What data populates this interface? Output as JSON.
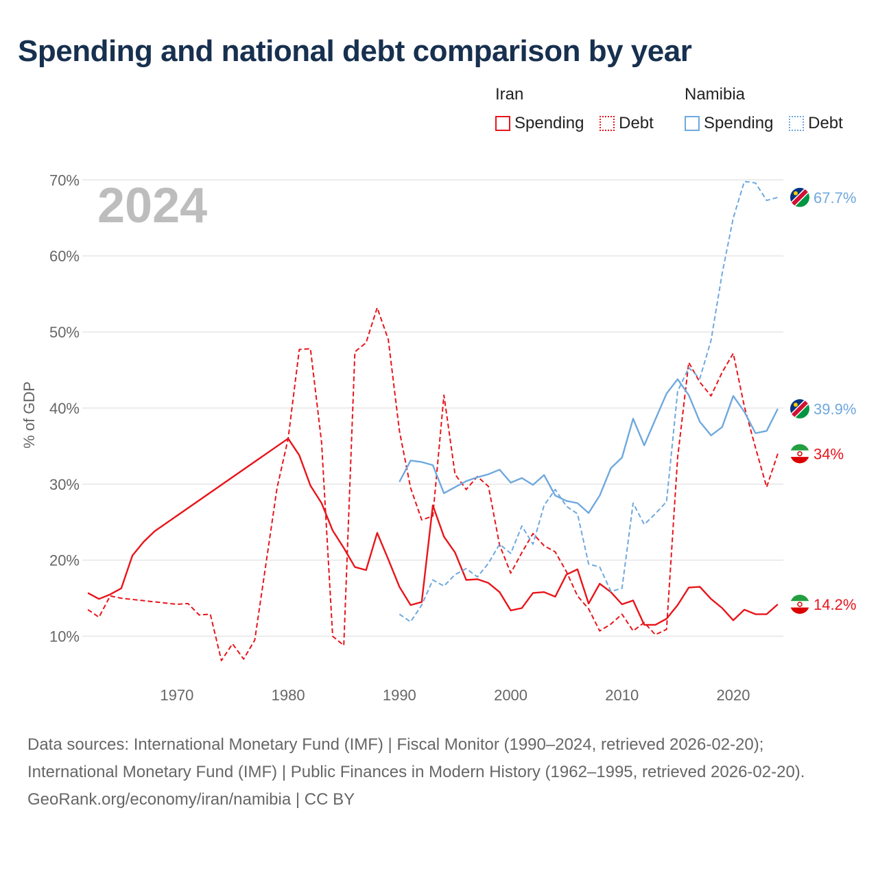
{
  "title": "Spending and national debt comparison by year",
  "legend": {
    "groups": [
      {
        "country": "Iran",
        "color": "#e8141a",
        "spending_label": "Spending",
        "debt_label": "Debt"
      },
      {
        "country": "Namibia",
        "color": "#6ea8de",
        "spending_label": "Spending",
        "debt_label": "Debt"
      }
    ]
  },
  "footer": {
    "sources": "Data sources: International Monetary Fund (IMF) | Fiscal Monitor (1990–2024, retrieved 2026-02-20); International Monetary Fund (IMF) | Public Finances in Modern History (1962–1995, retrieved 2026-02-20).",
    "credit": "GeoRank.org/economy/iran/namibia | CC BY"
  },
  "chart_data": {
    "type": "line",
    "year_label": "2024",
    "ylabel": "% of GDP",
    "xlim": [
      1961.5,
      2024.5
    ],
    "ylim": [
      5,
      73
    ],
    "x_ticks": [
      1970,
      1980,
      1990,
      2000,
      2010,
      2020
    ],
    "y_ticks": [
      {
        "value": 10,
        "label": "10%"
      },
      {
        "value": 20,
        "label": "20%"
      },
      {
        "value": 30,
        "label": "30%"
      },
      {
        "value": 40,
        "label": "40%"
      },
      {
        "value": 50,
        "label": "50%"
      },
      {
        "value": 60,
        "label": "60%"
      },
      {
        "value": 70,
        "label": "70%"
      }
    ],
    "series": [
      {
        "name": "Iran Spending",
        "country": "Iran",
        "metric": "Spending",
        "color": "#e8141a",
        "dashed": false,
        "end_label": "14.2%",
        "points": [
          [
            1962,
            15.7
          ],
          [
            1963,
            14.9
          ],
          [
            1964,
            15.5
          ],
          [
            1965,
            16.3
          ],
          [
            1966,
            20.6
          ],
          [
            1967,
            22.4
          ],
          [
            1968,
            23.8
          ],
          [
            1980,
            36.0
          ],
          [
            1981,
            33.8
          ],
          [
            1982,
            29.8
          ],
          [
            1983,
            27.5
          ],
          [
            1984,
            23.9
          ],
          [
            1985,
            21.6
          ],
          [
            1986,
            19.1
          ],
          [
            1987,
            18.7
          ],
          [
            1988,
            23.6
          ],
          [
            1989,
            20.1
          ],
          [
            1990,
            16.5
          ],
          [
            1991,
            14.1
          ],
          [
            1992,
            14.5
          ],
          [
            1993,
            27.2
          ],
          [
            1994,
            23.1
          ],
          [
            1995,
            21.0
          ],
          [
            1996,
            17.4
          ],
          [
            1997,
            17.5
          ],
          [
            1998,
            17.0
          ],
          [
            1999,
            15.8
          ],
          [
            2000,
            13.4
          ],
          [
            2001,
            13.7
          ],
          [
            2002,
            15.7
          ],
          [
            2003,
            15.8
          ],
          [
            2004,
            15.2
          ],
          [
            2005,
            18.1
          ],
          [
            2006,
            18.8
          ],
          [
            2007,
            14.3
          ],
          [
            2008,
            16.9
          ],
          [
            2009,
            15.8
          ],
          [
            2010,
            14.2
          ],
          [
            2011,
            14.7
          ],
          [
            2012,
            11.5
          ],
          [
            2013,
            11.5
          ],
          [
            2014,
            12.3
          ],
          [
            2015,
            14.1
          ],
          [
            2016,
            16.4
          ],
          [
            2017,
            16.5
          ],
          [
            2018,
            14.9
          ],
          [
            2019,
            13.7
          ],
          [
            2020,
            12.1
          ],
          [
            2021,
            13.5
          ],
          [
            2022,
            12.9
          ],
          [
            2023,
            12.9
          ],
          [
            2024,
            14.2
          ]
        ]
      },
      {
        "name": "Iran Debt",
        "country": "Iran",
        "metric": "Debt",
        "color": "#e8141a",
        "dashed": true,
        "end_label": "34%",
        "points": [
          [
            1962,
            13.5
          ],
          [
            1963,
            12.5
          ],
          [
            1964,
            15.3
          ],
          [
            1965,
            15.0
          ],
          [
            1970,
            14.2
          ],
          [
            1971,
            14.3
          ],
          [
            1972,
            12.8
          ],
          [
            1973,
            12.9
          ],
          [
            1974,
            6.8
          ],
          [
            1975,
            9.0
          ],
          [
            1976,
            7.0
          ],
          [
            1977,
            9.5
          ],
          [
            1978,
            19.5
          ],
          [
            1979,
            29.5
          ],
          [
            1980,
            36.0
          ],
          [
            1981,
            47.7
          ],
          [
            1982,
            47.8
          ],
          [
            1983,
            35.5
          ],
          [
            1984,
            10.0
          ],
          [
            1985,
            8.8
          ],
          [
            1986,
            47.4
          ],
          [
            1987,
            48.6
          ],
          [
            1988,
            53.2
          ],
          [
            1989,
            49.0
          ],
          [
            1990,
            37.0
          ],
          [
            1991,
            29.5
          ],
          [
            1992,
            25.3
          ],
          [
            1993,
            25.8
          ],
          [
            1994,
            41.7
          ],
          [
            1995,
            31.3
          ],
          [
            1996,
            29.3
          ],
          [
            1997,
            31.0
          ],
          [
            1998,
            29.7
          ],
          [
            1999,
            22.0
          ],
          [
            2000,
            18.3
          ],
          [
            2001,
            21.0
          ],
          [
            2002,
            23.5
          ],
          [
            2003,
            21.9
          ],
          [
            2004,
            21.1
          ],
          [
            2005,
            18.5
          ],
          [
            2006,
            15.3
          ],
          [
            2007,
            13.6
          ],
          [
            2008,
            10.7
          ],
          [
            2009,
            11.6
          ],
          [
            2010,
            12.9
          ],
          [
            2011,
            10.7
          ],
          [
            2012,
            11.8
          ],
          [
            2013,
            10.2
          ],
          [
            2014,
            10.9
          ],
          [
            2015,
            33.5
          ],
          [
            2016,
            46.0
          ],
          [
            2017,
            43.4
          ],
          [
            2018,
            41.6
          ],
          [
            2019,
            44.7
          ],
          [
            2020,
            47.2
          ],
          [
            2021,
            40.2
          ],
          [
            2022,
            34.8
          ],
          [
            2023,
            29.6
          ],
          [
            2024,
            34.0
          ]
        ]
      },
      {
        "name": "Namibia Spending",
        "country": "Namibia",
        "metric": "Spending",
        "color": "#6ea8de",
        "dashed": false,
        "end_label": "39.9%",
        "points": [
          [
            1990,
            30.3
          ],
          [
            1991,
            33.1
          ],
          [
            1992,
            32.9
          ],
          [
            1993,
            32.5
          ],
          [
            1994,
            28.8
          ],
          [
            1995,
            29.6
          ],
          [
            1996,
            30.4
          ],
          [
            1997,
            30.9
          ],
          [
            1998,
            31.3
          ],
          [
            1999,
            31.9
          ],
          [
            2000,
            30.2
          ],
          [
            2001,
            30.8
          ],
          [
            2002,
            29.9
          ],
          [
            2003,
            31.2
          ],
          [
            2004,
            28.5
          ],
          [
            2005,
            27.8
          ],
          [
            2006,
            27.5
          ],
          [
            2007,
            26.2
          ],
          [
            2008,
            28.5
          ],
          [
            2009,
            32.1
          ],
          [
            2010,
            33.5
          ],
          [
            2011,
            38.6
          ],
          [
            2012,
            35.1
          ],
          [
            2013,
            38.5
          ],
          [
            2014,
            41.9
          ],
          [
            2015,
            43.8
          ],
          [
            2016,
            41.7
          ],
          [
            2017,
            38.2
          ],
          [
            2018,
            36.4
          ],
          [
            2019,
            37.5
          ],
          [
            2020,
            41.6
          ],
          [
            2021,
            39.5
          ],
          [
            2022,
            36.7
          ],
          [
            2023,
            37.0
          ],
          [
            2024,
            39.9
          ]
        ]
      },
      {
        "name": "Namibia Debt",
        "country": "Namibia",
        "metric": "Debt",
        "color": "#6ea8de",
        "dashed": true,
        "end_label": "67.7%",
        "points": [
          [
            1990,
            12.9
          ],
          [
            1991,
            11.9
          ],
          [
            1992,
            14.1
          ],
          [
            1993,
            17.4
          ],
          [
            1994,
            16.6
          ],
          [
            1995,
            18.1
          ],
          [
            1996,
            18.9
          ],
          [
            1997,
            17.8
          ],
          [
            1998,
            19.6
          ],
          [
            1999,
            22.1
          ],
          [
            2000,
            20.9
          ],
          [
            2001,
            24.5
          ],
          [
            2002,
            22.1
          ],
          [
            2003,
            27.2
          ],
          [
            2004,
            29.3
          ],
          [
            2005,
            27.1
          ],
          [
            2006,
            26.1
          ],
          [
            2007,
            19.5
          ],
          [
            2008,
            19.1
          ],
          [
            2009,
            15.9
          ],
          [
            2010,
            16.3
          ],
          [
            2011,
            27.5
          ],
          [
            2012,
            24.7
          ],
          [
            2013,
            26.1
          ],
          [
            2014,
            27.7
          ],
          [
            2015,
            42.2
          ],
          [
            2016,
            45.3
          ],
          [
            2017,
            43.9
          ],
          [
            2018,
            48.9
          ],
          [
            2019,
            57.7
          ],
          [
            2020,
            65.0
          ],
          [
            2021,
            69.8
          ],
          [
            2022,
            69.6
          ],
          [
            2023,
            67.3
          ],
          [
            2024,
            67.7
          ]
        ]
      }
    ]
  }
}
